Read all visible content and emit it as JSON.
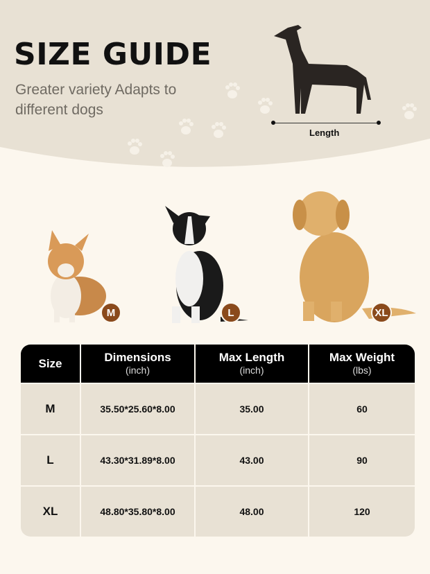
{
  "header": {
    "title": "SIZE GUIDE",
    "subtitle": "Greater variety Adapts to different dogs",
    "length_label": "Length"
  },
  "dogs": [
    {
      "size": "M",
      "breed_icon": "corgi"
    },
    {
      "size": "L",
      "breed_icon": "border-collie"
    },
    {
      "size": "XL",
      "breed_icon": "golden-retriever"
    }
  ],
  "colors": {
    "badge": "#8a4a1c",
    "header_bg": "#e8e1d4",
    "table_header": "#000000"
  },
  "table": {
    "headers": [
      {
        "label": "Size",
        "unit": ""
      },
      {
        "label": "Dimensions",
        "unit": "(inch)"
      },
      {
        "label": "Max Length",
        "unit": "(inch)"
      },
      {
        "label": "Max Weight",
        "unit": "(lbs)"
      }
    ],
    "rows": [
      [
        "M",
        "35.50*25.60*8.00",
        "35.00",
        "60"
      ],
      [
        "L",
        "43.30*31.89*8.00",
        "43.00",
        "90"
      ],
      [
        "XL",
        "48.80*35.80*8.00",
        "48.00",
        "120"
      ]
    ]
  }
}
